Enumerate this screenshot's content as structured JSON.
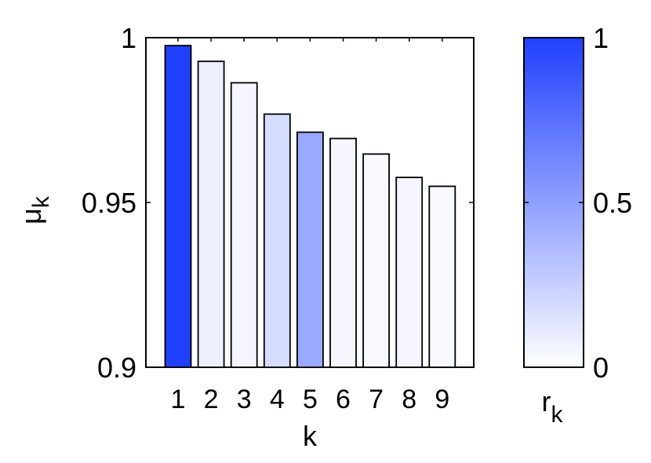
{
  "chart_data": {
    "type": "bar",
    "xlabel": "k",
    "ylabel_main": "μ",
    "ylabel_sub": "k",
    "ylim": [
      0.9,
      1.0
    ],
    "yticks": [
      0.9,
      0.95,
      1.0
    ],
    "ytick_labels": [
      "0.9",
      "0.95",
      "1"
    ],
    "categories": [
      "1",
      "2",
      "3",
      "4",
      "5",
      "6",
      "7",
      "8",
      "9"
    ],
    "values": [
      0.9976,
      0.9928,
      0.9863,
      0.9768,
      0.9713,
      0.9694,
      0.9647,
      0.9576,
      0.9549
    ],
    "color_values": [
      1.0,
      0.08,
      0.05,
      0.18,
      0.45,
      0.04,
      0.03,
      0.05,
      0.03
    ],
    "colorbar": {
      "label_main": "r",
      "label_sub": "k",
      "range": [
        0,
        1
      ],
      "ticks": [
        0,
        0.5,
        1
      ],
      "tick_labels": [
        "0",
        "0.5",
        "1"
      ],
      "color_low": "#ffffff",
      "color_high": "#2040ff"
    },
    "grid": false,
    "legend": "none"
  }
}
